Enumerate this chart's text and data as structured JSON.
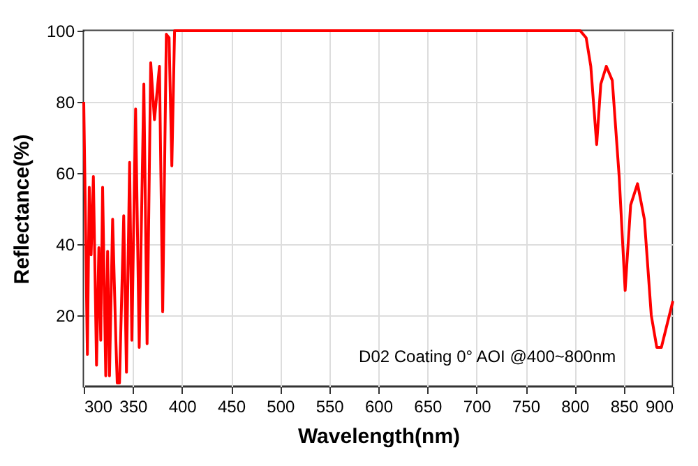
{
  "chart_data": {
    "type": "line",
    "xlabel": "Wavelength(nm)",
    "ylabel": "Reflectance(%)",
    "annotations": [
      "D02 Coating  0°  AOI @400~800nm"
    ],
    "xlim": [
      300,
      900
    ],
    "xticks": [
      300,
      350,
      400,
      450,
      500,
      550,
      600,
      650,
      700,
      750,
      800,
      850,
      900
    ],
    "ylim": [
      0,
      100
    ],
    "yticks": [
      20,
      40,
      60,
      80,
      100
    ],
    "grid": true,
    "marker": "none",
    "line_style": "solid",
    "series": [
      {
        "color": "#ff0000",
        "x": [
          300,
          303.7,
          305.6,
          307.5,
          309.8,
          313,
          315.4,
          317.3,
          319.2,
          322.4,
          324.3,
          326.2,
          329.4,
          332.7,
          334.1,
          336.4,
          340.7,
          343.5,
          346.7,
          349,
          352.8,
          356.5,
          361.2,
          364.5,
          368.2,
          372,
          377.1,
          380.4,
          384.1,
          386.9,
          389.7,
          392.5,
          395.8,
          500,
          600,
          700,
          805.6,
          811.7,
          816.4,
          822.4,
          826.6,
          832.2,
          838.3,
          845.3,
          851.4,
          857,
          864,
          871,
          878,
          883.6,
          888.3,
          900
        ],
        "values": [
          80,
          9,
          56,
          37,
          59,
          6,
          39,
          13,
          56,
          3,
          38,
          3,
          47,
          13,
          1,
          1,
          48,
          4,
          63,
          13,
          78,
          11,
          85,
          12,
          91,
          75,
          90,
          21,
          99,
          98,
          62,
          100,
          100,
          100,
          100,
          100,
          100,
          98,
          90,
          68,
          85,
          90,
          86,
          59,
          27,
          51,
          57,
          47,
          20,
          11,
          11,
          24
        ]
      }
    ]
  }
}
